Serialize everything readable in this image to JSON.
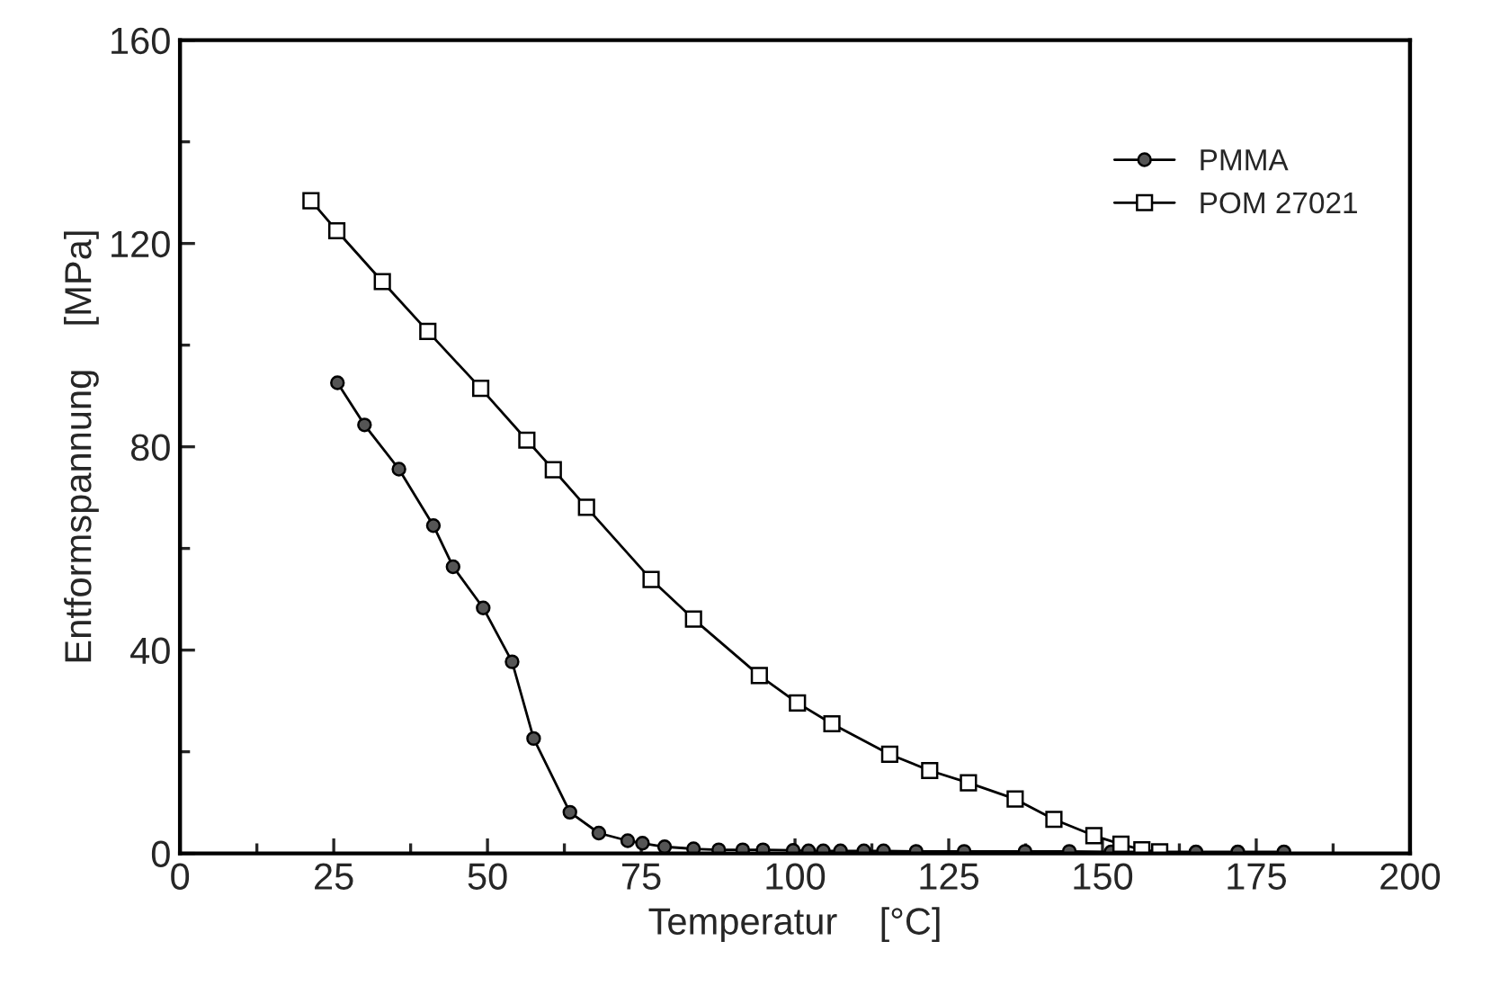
{
  "chart_data": {
    "type": "line",
    "xlabel": "Temperatur    [°C]",
    "ylabel": "Entformspannung    [MPa]",
    "xlim": [
      0,
      200
    ],
    "xticks": [
      0,
      25,
      50,
      75,
      100,
      125,
      150,
      175,
      200
    ],
    "ylim": [
      0,
      160
    ],
    "yticks": [
      0,
      40,
      80,
      120,
      160
    ],
    "grid": false,
    "legend": "top right",
    "series": [
      {
        "name": "PMMA",
        "color": "#000000",
        "marker": "circle",
        "x": [
          25.6,
          30.0,
          35.6,
          41.2,
          44.4,
          49.3,
          54.0,
          57.5,
          63.4,
          68.1,
          72.8,
          75.2,
          78.8,
          83.5,
          87.6,
          91.5,
          94.8,
          99.7,
          102.2,
          104.6,
          107.4,
          111.2,
          114.4,
          119.7,
          127.5,
          137.4,
          144.6,
          151.4,
          165.2,
          172,
          179.5
        ],
        "values": [
          92.6,
          84.3,
          75.6,
          64.5,
          56.4,
          48.3,
          37.7,
          22.6,
          8.1,
          4.0,
          2.5,
          2.0,
          1.3,
          0.9,
          0.7,
          0.7,
          0.7,
          0.6,
          0.5,
          0.5,
          0.5,
          0.5,
          0.5,
          0.4,
          0.4,
          0.4,
          0.4,
          0.3,
          0.3,
          0.3,
          0.3
        ]
      },
      {
        "name": "POM 27021",
        "color": "#000000",
        "marker": "square",
        "x": [
          21.3,
          25.5,
          32.9,
          40.3,
          48.9,
          56.4,
          60.7,
          66.1,
          76.6,
          83.5,
          94.2,
          100.4,
          106.0,
          115.4,
          121.9,
          128.2,
          135.8,
          142.1,
          148.6,
          153.0,
          156.4,
          159.3
        ],
        "values": [
          128.4,
          122.5,
          112.5,
          102.7,
          91.5,
          81.3,
          75.5,
          68.1,
          53.9,
          46.1,
          35.0,
          29.6,
          25.5,
          19.5,
          16.3,
          13.9,
          10.7,
          6.7,
          3.5,
          1.8,
          0.7,
          0.3
        ]
      }
    ]
  }
}
